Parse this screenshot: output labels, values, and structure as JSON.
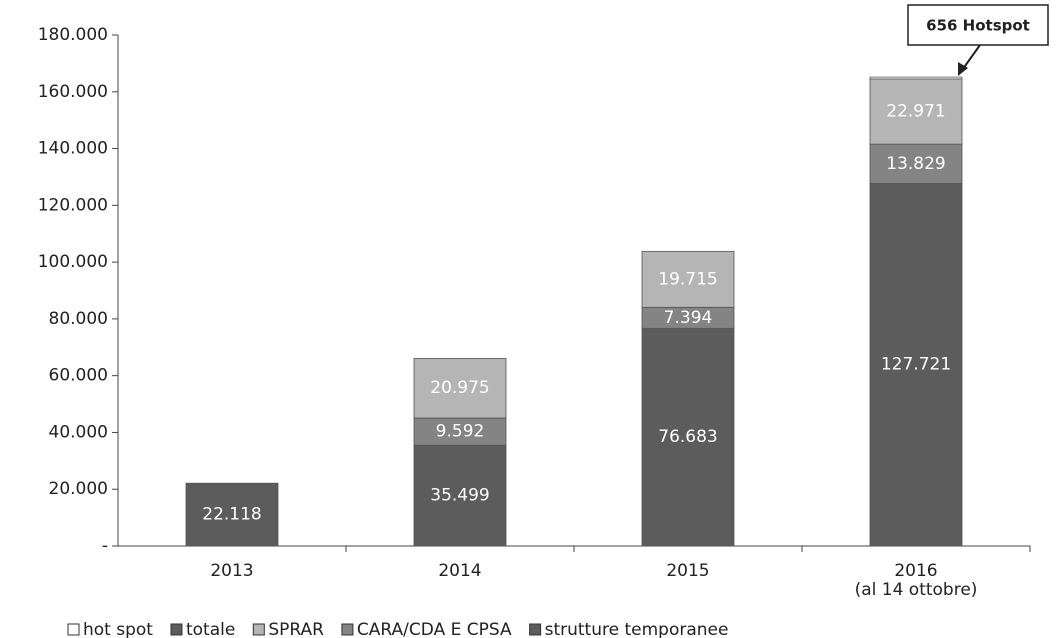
{
  "chart_data": {
    "type": "bar",
    "stacked": true,
    "categories": [
      "2013",
      "2014",
      "2015",
      "2016\n(al 14 ottobre)"
    ],
    "series": [
      {
        "name": "hot spot",
        "color": "#ffffff",
        "values": [
          null,
          null,
          null,
          656
        ]
      },
      {
        "name": "totale",
        "color": "#5c5c5c",
        "values": [
          22118,
          null,
          null,
          null
        ],
        "value_labels": [
          "22.118",
          null,
          null,
          null
        ]
      },
      {
        "name": "SPRAR",
        "color": "#b5b5b5",
        "values": [
          null,
          20975,
          19715,
          22971
        ],
        "value_labels": [
          null,
          "20.975",
          "19.715",
          "22.971"
        ]
      },
      {
        "name": "CARA/CDA E CPSA",
        "color": "#848484",
        "values": [
          null,
          9592,
          7394,
          13829
        ],
        "value_labels": [
          null,
          "9.592",
          "7.394",
          "13.829"
        ]
      },
      {
        "name": "strutture temporanee",
        "color": "#5c5c5c",
        "values": [
          null,
          35499,
          76683,
          127721
        ],
        "value_labels": [
          null,
          "35.499",
          "76.683",
          "127.721"
        ]
      }
    ],
    "annotation": "656 Hotspot",
    "ylim": [
      0,
      180000
    ],
    "yticks": [
      {
        "value": 0,
        "label": "-"
      },
      {
        "value": 20000,
        "label": "20.000"
      },
      {
        "value": 40000,
        "label": "40.000"
      },
      {
        "value": 60000,
        "label": "60.000"
      },
      {
        "value": 80000,
        "label": "80.000"
      },
      {
        "value": 100000,
        "label": "100.000"
      },
      {
        "value": 120000,
        "label": "120.000"
      },
      {
        "value": 140000,
        "label": "140.000"
      },
      {
        "value": 160000,
        "label": "160.000"
      },
      {
        "value": 180000,
        "label": "180.000"
      }
    ]
  }
}
